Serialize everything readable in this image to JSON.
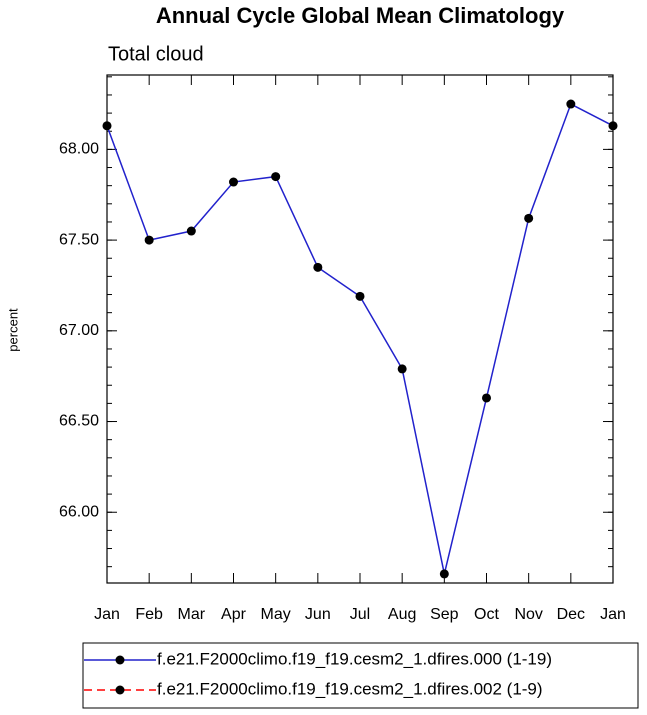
{
  "chart_data": {
    "type": "line",
    "title": "Annual Cycle Global Mean Climatology",
    "subtitle": "Total cloud",
    "y_label": "percent",
    "categories": [
      "Jan",
      "Feb",
      "Mar",
      "Apr",
      "May",
      "Jun",
      "Jul",
      "Aug",
      "Sep",
      "Oct",
      "Nov",
      "Dec",
      "Jan"
    ],
    "series": [
      {
        "name": "f.e21.F2000climo.f19_f19.cesm2_1.dfires.000 (1-19)",
        "color": "#2222cc",
        "dashed": false,
        "values": [
          68.13,
          67.5,
          67.55,
          67.82,
          67.85,
          67.35,
          67.19,
          66.79,
          65.66,
          66.63,
          67.62,
          68.25,
          68.13
        ]
      },
      {
        "name": "f.e21.F2000climo.f19_f19.cesm2_1.dfires.002 (1-9)",
        "color": "#ff0000",
        "dashed": true,
        "values": [
          null,
          null,
          null,
          null,
          null,
          null,
          null,
          null,
          null,
          null,
          null,
          null,
          null
        ]
      }
    ],
    "ylim": [
      65.61,
      68.41
    ],
    "yticks": [
      {
        "value": 66,
        "label": "66.00"
      },
      {
        "value": 66.5,
        "label": "66.50"
      },
      {
        "value": 67,
        "label": "67.00"
      },
      {
        "value": 67.5,
        "label": "67.50"
      },
      {
        "value": 68,
        "label": "68.00"
      }
    ],
    "legend": "bottom"
  }
}
